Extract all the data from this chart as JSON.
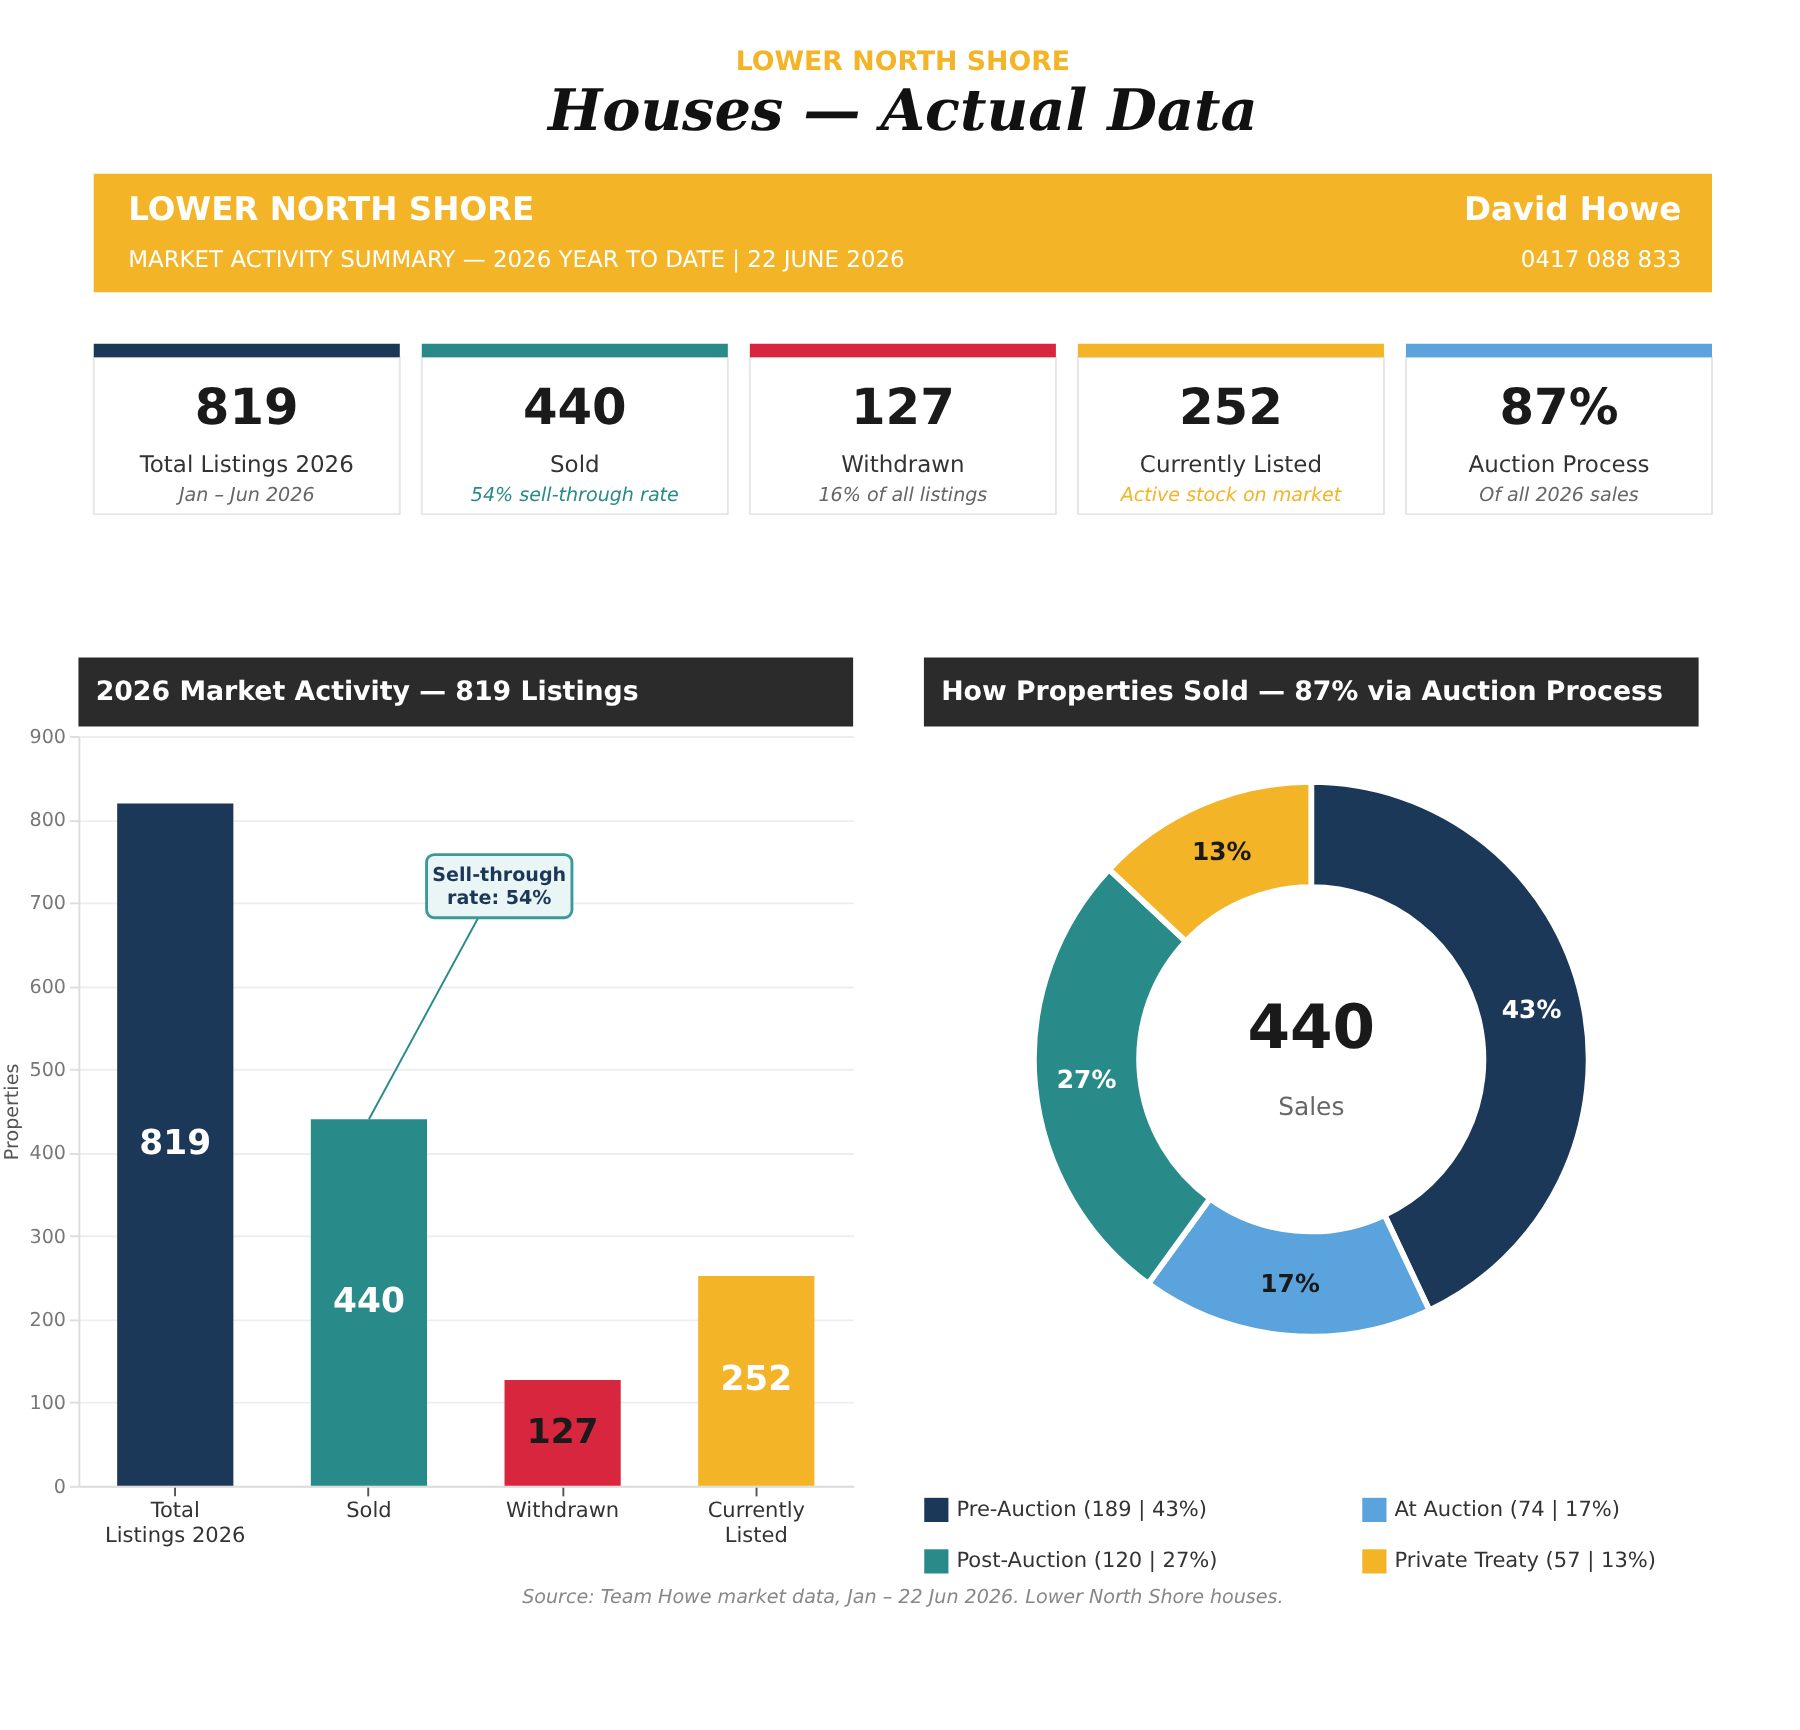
{
  "chart_data": [
    {
      "type": "other",
      "title": "Houses — Actual Data",
      "subtitle": "LOWER NORTH SHORE",
      "color": "#f3b427",
      "annotations": [
        "LOWER NORTH SHORE",
        "MARKET ACTIVITY SUMMARY   —   2026 YEAR TO DATE   |   22 JUNE 2026",
        "David Howe",
        "0417 088 833"
      ]
    },
    {
      "type": "other",
      "categories": [
        "Total Listings 2026",
        "Sold",
        "Withdrawn",
        "Currently Listed",
        "Auction Process"
      ],
      "values": [
        819,
        440,
        127,
        252,
        87
      ],
      "value_labels": [
        "819",
        "440",
        "127",
        "252",
        "87%"
      ],
      "colors": [
        "#1c3859",
        "#288b89",
        "#d7263d",
        "#f3b427",
        "#5aa3dc"
      ],
      "annotations": [
        "Jan – Jun 2026",
        "54% sell-through rate",
        "16% of all listings",
        "Active stock on market",
        "Of all 2026 sales"
      ]
    },
    {
      "type": "bar",
      "title": "2026 Market Activity  —  819 Listings",
      "ylabel": "Properties",
      "categories": [
        "Total Listings 2026",
        "Sold",
        "Withdrawn",
        "Currently Listed"
      ],
      "values": [
        819,
        440,
        127,
        252
      ],
      "colors": [
        "#1c3859",
        "#288b89",
        "#d7263d",
        "#f3b427"
      ],
      "ylim": [
        0,
        900
      ],
      "yticks": [
        0,
        100,
        200,
        300,
        400,
        500,
        600,
        700,
        800,
        900
      ],
      "grid": "y",
      "data_labels": true,
      "annotations": [
        {
          "text": "Sell-through rate: 54%",
          "x": "Sold",
          "y": 440
        }
      ]
    },
    {
      "type": "donut",
      "title": "How Properties Sold  —  87% via Auction Process",
      "categories": [
        "Pre-Auction (189 | 43%)",
        "At Auction (74 | 17%)",
        "Post-Auction (120 | 27%)",
        "Private Treaty (57 | 13%)"
      ],
      "values": [
        43,
        17,
        27,
        13
      ],
      "value_labels": [
        "43%",
        "17%",
        "27%",
        "13%"
      ],
      "colors": [
        "#1c3859",
        "#5aa3dc",
        "#288b89",
        "#f3b427"
      ],
      "legend": "bottom",
      "annotations": [
        "440",
        "Sales",
        "Source: Team Howe market data, Jan – 22 Jun 2026. Lower North Shore houses."
      ]
    }
  ]
}
